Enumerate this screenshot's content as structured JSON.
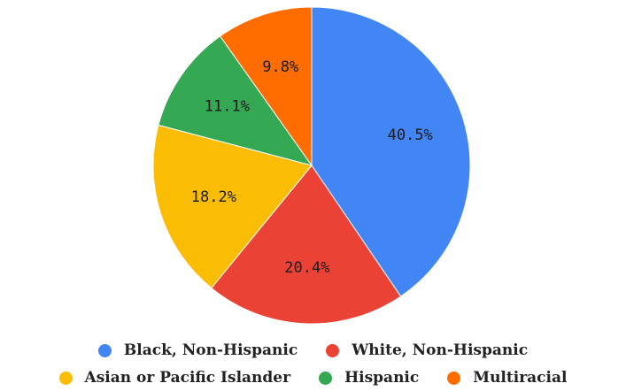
{
  "chart_data": {
    "type": "pie",
    "title": "",
    "slices": [
      {
        "name": "Black, Non-Hispanic",
        "value": 40.5,
        "label": "40.5%",
        "color": "#4285F4"
      },
      {
        "name": "White, Non-Hispanic",
        "value": 20.4,
        "label": "20.4%",
        "color": "#EA4335"
      },
      {
        "name": "Asian or Pacific Islander",
        "value": 18.2,
        "label": "18.2%",
        "color": "#FBBC04"
      },
      {
        "name": "Hispanic",
        "value": 11.1,
        "label": "11.1%",
        "color": "#34A853"
      },
      {
        "name": "Multiracial",
        "value": 9.8,
        "label": "9.8%",
        "color": "#FF6D01"
      }
    ],
    "legend_position": "bottom"
  }
}
